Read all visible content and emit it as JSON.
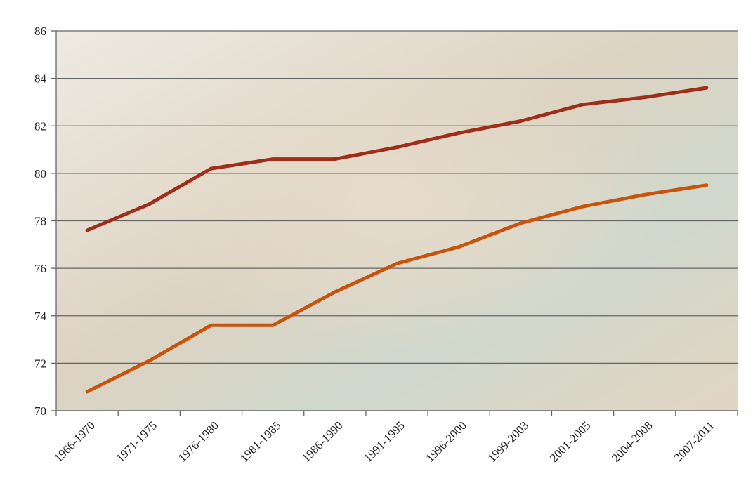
{
  "chart_data": {
    "type": "line",
    "categories": [
      "1966-1970",
      "1971-1975",
      "1976-1980",
      "1981-1985",
      "1986-1990",
      "1991-1995",
      "1996-2000",
      "1999-2003",
      "2001-2005",
      "2004-2008",
      "2007-2011"
    ],
    "series": [
      {
        "color": "#9e2e1a",
        "values": [
          77.6,
          78.7,
          80.2,
          80.6,
          80.6,
          81.1,
          81.7,
          82.2,
          82.9,
          83.2,
          83.6
        ]
      },
      {
        "color": "#c8530c",
        "values": [
          70.8,
          72.1,
          73.6,
          73.6,
          75.0,
          76.2,
          76.9,
          77.9,
          78.6,
          79.1,
          79.5
        ]
      }
    ],
    "ylim": [
      70,
      86
    ],
    "yticks": [
      70,
      72,
      74,
      76,
      78,
      80,
      82,
      84,
      86
    ],
    "grid": true
  }
}
